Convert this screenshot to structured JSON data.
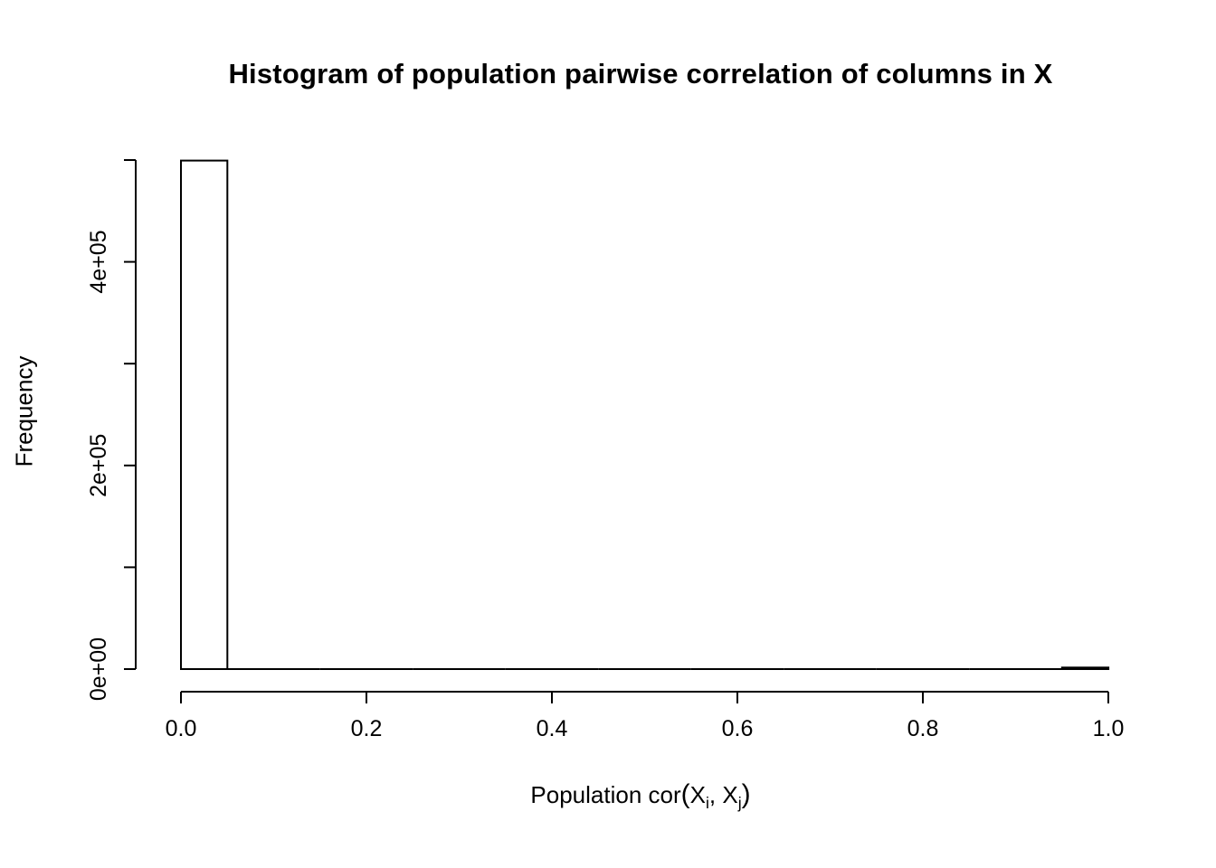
{
  "chart_data": {
    "type": "bar",
    "subtype": "histogram",
    "title": "Histogram of population pairwise correlation of columns in X",
    "xlabel": "Population cor(X_i, X_j)",
    "xlabel_parts": {
      "prefix": "Population cor",
      "open_paren": "(",
      "var1": "X",
      "sub1": "i",
      "separator": ", ",
      "var2": "X",
      "sub2": "j",
      "close_paren": ")"
    },
    "ylabel": "Frequency",
    "xlim": [
      0.0,
      1.0
    ],
    "ylim": [
      0,
      500000
    ],
    "bin_start": 0.0,
    "bin_width": 0.05,
    "bins": [
      499500,
      0,
      0,
      0,
      0,
      0,
      0,
      0,
      0,
      0,
      0,
      0,
      0,
      0,
      0,
      0,
      0,
      0,
      0,
      1500
    ],
    "x_ticks": {
      "values": [
        0.0,
        0.2,
        0.4,
        0.6,
        0.8,
        1.0
      ],
      "labels": [
        "0.0",
        "0.2",
        "0.4",
        "0.6",
        "0.8",
        "1.0"
      ]
    },
    "y_ticks": {
      "values": [
        0,
        100000,
        200000,
        300000,
        400000,
        500000
      ],
      "labels": [
        "0e+00",
        "",
        "2e+05",
        "",
        "4e+05",
        ""
      ]
    },
    "grid": false,
    "legend": "none",
    "colors": {
      "background": "#ffffff",
      "bar_fill": "#ffffff",
      "bar_stroke": "#000000",
      "axis": "#000000",
      "text": "#000000"
    }
  }
}
